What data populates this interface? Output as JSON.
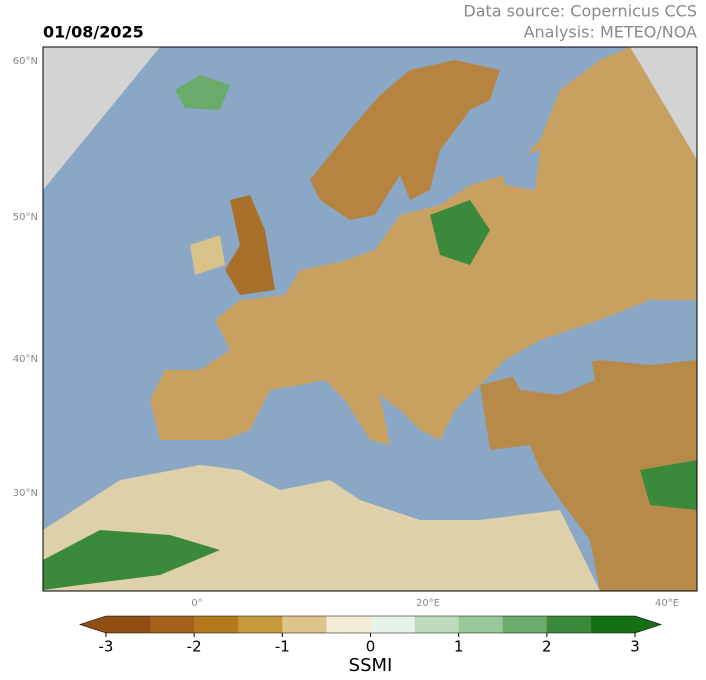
{
  "header": {
    "date": "01/08/2025",
    "source": "Data source: Copernicus CCS",
    "analysis": "Analysis: METEO/NOA"
  },
  "map": {
    "lat_labels": [
      "60°N",
      "50°N",
      "40°N",
      "30°N"
    ],
    "lon_labels": [
      "0°",
      "20°E",
      "40°E"
    ]
  },
  "colorbar": {
    "label": "SSMI",
    "range": [
      -3,
      3
    ],
    "ticks": [
      -3,
      -2,
      -1,
      0,
      1,
      2,
      3
    ],
    "colors": [
      "#8f4e14",
      "#a3621a",
      "#b27a1c",
      "#c49a3a",
      "#dcc48a",
      "#f3ebd4",
      "#e8f2e8",
      "#bcdcbc",
      "#98c898",
      "#6aaa6a",
      "#3b8a3b",
      "#157015"
    ]
  }
}
